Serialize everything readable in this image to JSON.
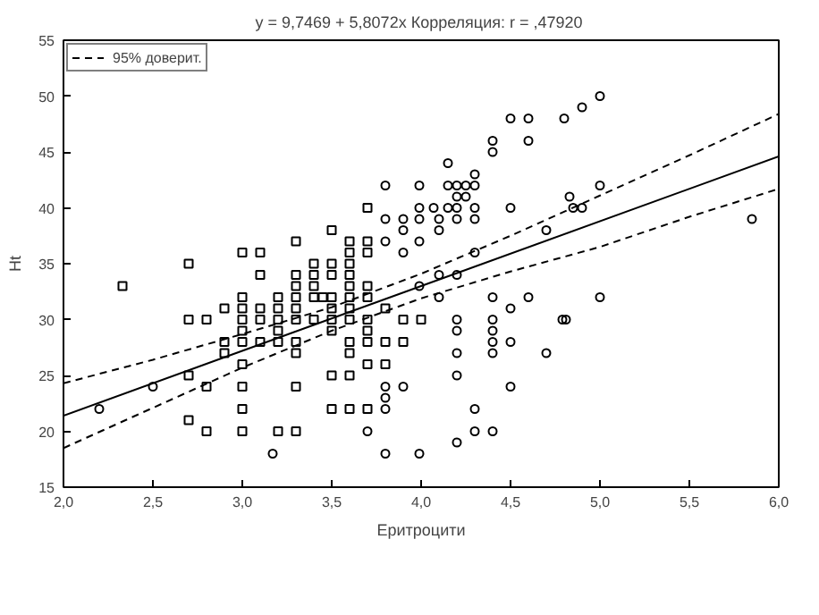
{
  "chart_data": {
    "type": "scatter",
    "title": "y = 9,7469 + 5,8072x  Корреляция: r = ,47920",
    "xlabel": "Еритроцити",
    "ylabel": "Ht",
    "xlim": [
      2,
      6
    ],
    "ylim": [
      15,
      55
    ],
    "xticks": [
      {
        "value": 2,
        "label": "2,0"
      },
      {
        "value": 2.5,
        "label": "2,5"
      },
      {
        "value": 3,
        "label": "3,0"
      },
      {
        "value": 3.5,
        "label": "3,5"
      },
      {
        "value": 4,
        "label": "4,0"
      },
      {
        "value": 4.5,
        "label": "4,5"
      },
      {
        "value": 5,
        "label": "5,0"
      },
      {
        "value": 5.5,
        "label": "5,5"
      },
      {
        "value": 6,
        "label": "6,0"
      }
    ],
    "yticks": [
      15,
      20,
      25,
      30,
      35,
      40,
      45,
      50,
      55
    ],
    "grid": false,
    "legend": "top left",
    "series": [
      {
        "type": "scatter",
        "marker": "square",
        "color": "#000000",
        "x": [
          3.7,
          3.5,
          3.3,
          3.6,
          3.7,
          3.0,
          3.1,
          3.6,
          3.7,
          2.7,
          3.4,
          3.5,
          3.6,
          3.1,
          3.3,
          3.4,
          3.5,
          3.6,
          2.33,
          3.3,
          3.4,
          3.6,
          3.7,
          3.0,
          3.2,
          3.3,
          3.4,
          3.45,
          3.5,
          3.6,
          3.7,
          2.9,
          3.0,
          3.1,
          3.2,
          3.3,
          3.5,
          3.6,
          3.8,
          2.7,
          2.8,
          3.0,
          3.1,
          3.2,
          3.3,
          3.4,
          3.5,
          3.6,
          3.7,
          3.9,
          4.0,
          3.0,
          3.2,
          3.5,
          3.7,
          2.9,
          3.0,
          3.1,
          3.2,
          3.3,
          3.6,
          3.7,
          3.8,
          3.9,
          2.9,
          3.3,
          3.6,
          3.0,
          3.7,
          3.8,
          2.7,
          3.5,
          3.6,
          2.8,
          3.0,
          3.3,
          3.0,
          3.5,
          3.6,
          3.7,
          2.7,
          2.8,
          3.0,
          3.2,
          3.3
        ],
        "values": [
          40,
          38,
          37,
          37,
          37,
          36,
          36,
          36,
          36,
          35,
          35,
          35,
          35,
          34,
          34,
          34,
          34,
          34,
          33,
          33,
          33,
          33,
          33,
          32,
          32,
          32,
          32,
          32,
          32,
          32,
          32,
          31,
          31,
          31,
          31,
          31,
          31,
          31,
          31,
          30,
          30,
          30,
          30,
          30,
          30,
          30,
          30,
          30,
          30,
          30,
          30,
          29,
          29,
          29,
          29,
          28,
          28,
          28,
          28,
          28,
          28,
          28,
          28,
          28,
          27,
          27,
          27,
          26,
          26,
          26,
          25,
          25,
          25,
          24,
          24,
          24,
          22,
          22,
          22,
          22,
          21,
          20,
          20,
          20,
          20
        ]
      },
      {
        "type": "scatter",
        "marker": "circle",
        "color": "#000000",
        "x": [
          5.0,
          4.9,
          4.8,
          4.5,
          4.6,
          4.4,
          4.6,
          4.4,
          4.15,
          4.3,
          3.8,
          3.99,
          4.15,
          4.2,
          4.25,
          4.3,
          5.0,
          4.2,
          4.25,
          4.83,
          3.99,
          4.07,
          4.15,
          4.2,
          4.3,
          4.5,
          4.85,
          4.9,
          3.8,
          3.9,
          3.99,
          4.1,
          4.2,
          4.3,
          5.85,
          3.9,
          4.1,
          4.7,
          3.8,
          3.99,
          3.9,
          4.3,
          3.99,
          4.1,
          4.2,
          4.1,
          4.4,
          4.6,
          5.0,
          4.5,
          4.2,
          4.4,
          4.79,
          4.81,
          4.2,
          4.4,
          4.4,
          4.5,
          4.2,
          4.4,
          4.7,
          4.2,
          2.5,
          3.8,
          3.9,
          4.5,
          3.8,
          2.2,
          3.8,
          4.3,
          3.7,
          4.3,
          4.4,
          4.2,
          3.17,
          3.8,
          3.99
        ],
        "values": [
          50,
          49,
          48,
          48,
          48,
          46,
          46,
          45,
          44,
          43,
          42,
          42,
          42,
          42,
          42,
          42,
          42,
          41,
          41,
          41,
          40,
          40,
          40,
          40,
          40,
          40,
          40,
          40,
          39,
          39,
          39,
          39,
          39,
          39,
          39,
          38,
          38,
          38,
          37,
          37,
          36,
          36,
          33,
          34,
          34,
          32,
          32,
          32,
          32,
          31,
          30,
          30,
          30,
          30,
          29,
          29,
          28,
          28,
          27,
          27,
          27,
          25,
          24,
          24,
          24,
          24,
          23,
          22,
          22,
          22,
          20,
          20,
          20,
          19,
          18,
          18,
          18
        ]
      },
      {
        "type": "line",
        "line_style": "solid",
        "color": "#000000",
        "x": [
          2,
          6
        ],
        "values": [
          21.4,
          44.6
        ]
      },
      {
        "type": "line",
        "line_style": "dashed",
        "color": "#000000",
        "name": "95% доверит.",
        "x": [
          2,
          2.5,
          3,
          3.5,
          4,
          4.5,
          5,
          5.5,
          6
        ],
        "values": [
          24.3,
          26.4,
          28.7,
          31.1,
          34.1,
          37.5,
          41.1,
          44.7,
          48.4
        ]
      },
      {
        "type": "line",
        "line_style": "dashed",
        "color": "#000000",
        "x": [
          2,
          2.5,
          3,
          3.5,
          4,
          4.5,
          5,
          5.5,
          6
        ],
        "values": [
          18.5,
          22.1,
          25.7,
          29.0,
          31.9,
          34.3,
          36.5,
          39.2,
          41.7
        ]
      }
    ]
  }
}
